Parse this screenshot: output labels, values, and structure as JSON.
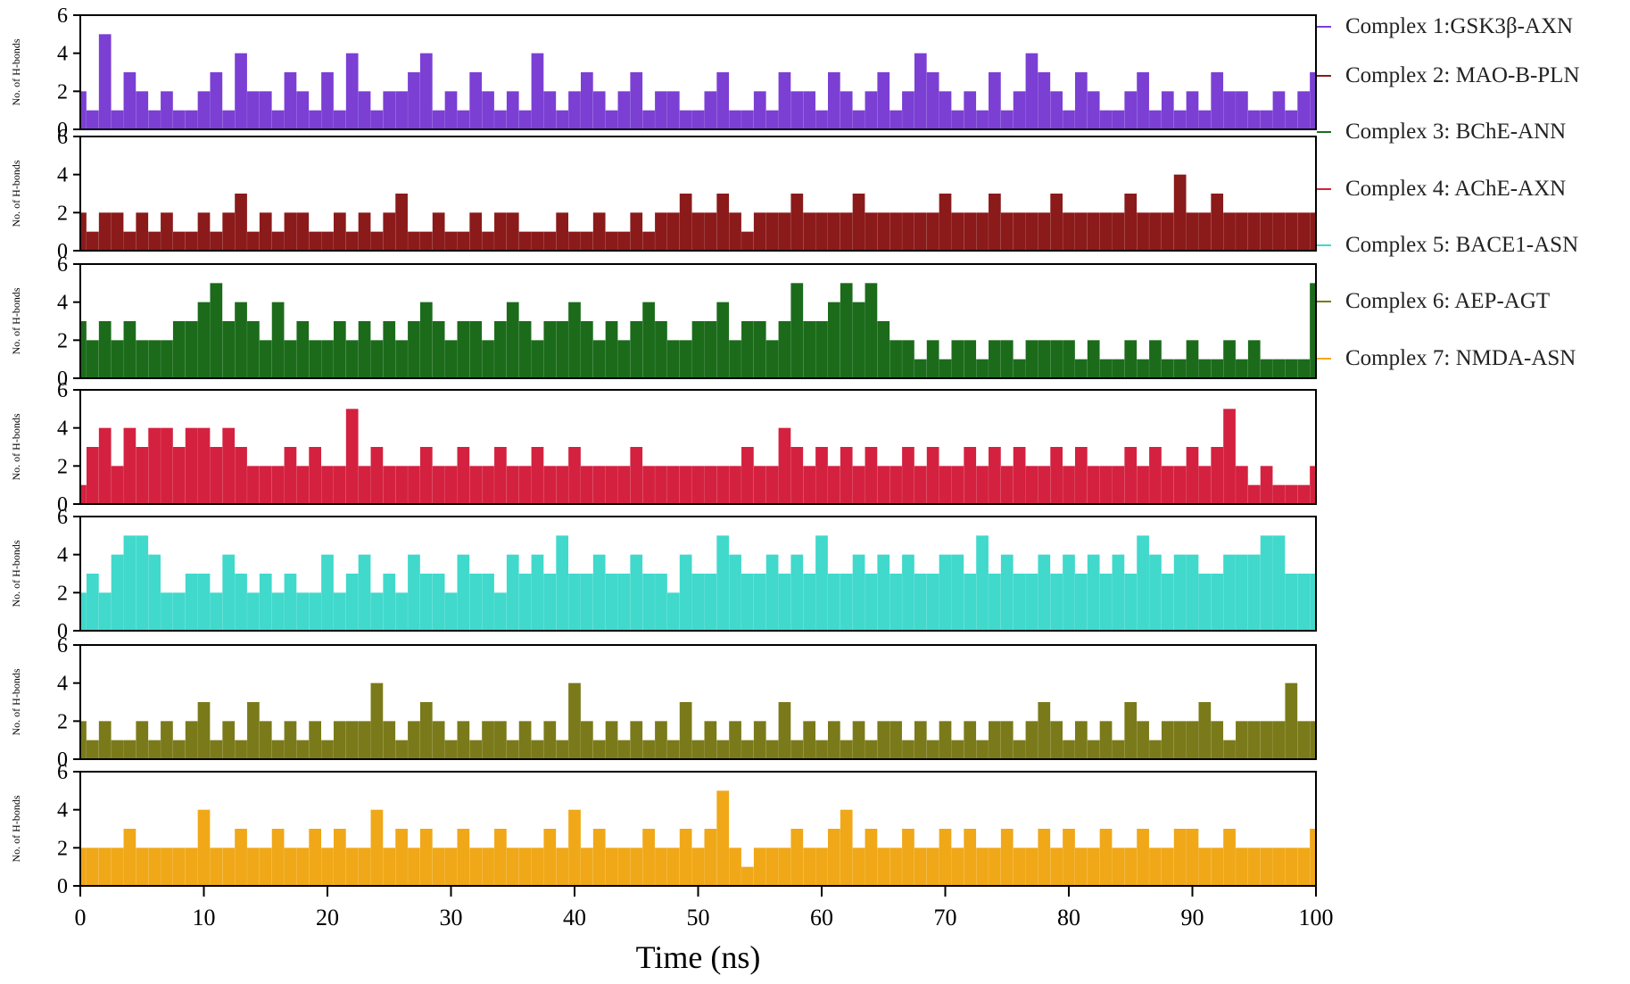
{
  "chart_data": {
    "type": "bar",
    "xlabel": "Time (ns)",
    "xlim": [
      0,
      100
    ],
    "x_ticks": [
      "0",
      "10",
      "20",
      "30",
      "40",
      "50",
      "60",
      "70",
      "80",
      "90",
      "100"
    ],
    "ylim": [
      0,
      6
    ],
    "y_ticks": [
      "0",
      "2",
      "4",
      "6"
    ],
    "panels": [
      {
        "legend": "Complex 1:GSK3β-AXN",
        "ylabel": "No. of H-bonds",
        "color": "#7b3fd4",
        "sample_interval_ns": 1,
        "values": [
          2,
          1,
          5,
          1,
          3,
          2,
          1,
          2,
          1,
          1,
          2,
          3,
          1,
          4,
          2,
          2,
          1,
          3,
          2,
          1,
          3,
          1,
          4,
          2,
          1,
          2,
          2,
          3,
          4,
          1,
          2,
          1,
          3,
          2,
          1,
          2,
          1,
          4,
          2,
          1,
          2,
          3,
          2,
          1,
          2,
          3,
          1,
          2,
          2,
          1,
          1,
          2,
          3,
          1,
          1,
          2,
          1,
          3,
          2,
          2,
          1,
          3,
          2,
          1,
          2,
          3,
          1,
          2,
          4,
          3,
          2,
          1,
          2,
          1,
          3,
          1,
          2,
          4,
          3,
          2,
          1,
          3,
          2,
          1,
          1,
          2,
          3,
          1,
          2,
          1,
          2,
          1,
          3,
          2,
          2,
          1,
          1,
          2,
          1,
          2,
          3
        ]
      },
      {
        "legend": "Complex 2: MAO-B-PLN",
        "ylabel": "No. of H-bonds",
        "color": "#8b1a1a",
        "sample_interval_ns": 1,
        "values": [
          2,
          1,
          2,
          2,
          1,
          2,
          1,
          2,
          1,
          1,
          2,
          1,
          2,
          3,
          1,
          2,
          1,
          2,
          2,
          1,
          1,
          2,
          1,
          2,
          1,
          2,
          3,
          1,
          1,
          2,
          1,
          1,
          2,
          1,
          2,
          2,
          1,
          1,
          1,
          2,
          1,
          1,
          2,
          1,
          1,
          2,
          1,
          2,
          2,
          3,
          2,
          2,
          3,
          2,
          1,
          2,
          2,
          2,
          3,
          2,
          2,
          2,
          2,
          3,
          2,
          2,
          2,
          2,
          2,
          2,
          3,
          2,
          2,
          2,
          3,
          2,
          2,
          2,
          2,
          3,
          2,
          2,
          2,
          2,
          2,
          3,
          2,
          2,
          2,
          4,
          2,
          2,
          3,
          2,
          2,
          2,
          2,
          2,
          2,
          2,
          2
        ]
      },
      {
        "legend": "Complex 3: BChE-ANN",
        "ylabel": "No. of H-bonds",
        "color": "#1b6b1b",
        "sample_interval_ns": 1,
        "values": [
          3,
          2,
          3,
          2,
          3,
          2,
          2,
          2,
          3,
          3,
          4,
          5,
          3,
          4,
          3,
          2,
          4,
          2,
          3,
          2,
          2,
          3,
          2,
          3,
          2,
          3,
          2,
          3,
          4,
          3,
          2,
          3,
          3,
          2,
          3,
          4,
          3,
          2,
          3,
          3,
          4,
          3,
          2,
          3,
          2,
          3,
          4,
          3,
          2,
          2,
          3,
          3,
          4,
          2,
          3,
          3,
          2,
          3,
          5,
          3,
          3,
          4,
          5,
          4,
          5,
          3,
          2,
          2,
          1,
          2,
          1,
          2,
          2,
          1,
          2,
          2,
          1,
          2,
          2,
          2,
          2,
          1,
          2,
          1,
          1,
          2,
          1,
          2,
          1,
          1,
          2,
          1,
          1,
          2,
          1,
          2,
          1,
          1,
          1,
          1,
          5
        ]
      },
      {
        "legend": "Complex 4: AChE-AXN",
        "ylabel": "No. of H-bonds",
        "color": "#d4213f",
        "sample_interval_ns": 1,
        "values": [
          1,
          3,
          4,
          2,
          4,
          3,
          4,
          4,
          3,
          4,
          4,
          3,
          4,
          3,
          2,
          2,
          2,
          3,
          2,
          3,
          2,
          2,
          5,
          2,
          3,
          2,
          2,
          2,
          3,
          2,
          2,
          3,
          2,
          2,
          3,
          2,
          2,
          3,
          2,
          2,
          3,
          2,
          2,
          2,
          2,
          3,
          2,
          2,
          2,
          2,
          2,
          2,
          2,
          2,
          3,
          2,
          2,
          4,
          3,
          2,
          3,
          2,
          3,
          2,
          3,
          2,
          2,
          3,
          2,
          3,
          2,
          2,
          3,
          2,
          3,
          2,
          3,
          2,
          2,
          3,
          2,
          3,
          2,
          2,
          2,
          3,
          2,
          3,
          2,
          2,
          3,
          2,
          3,
          5,
          2,
          1,
          2,
          1,
          1,
          1,
          2
        ]
      },
      {
        "legend": "Complex 5: BACE1-ASN",
        "ylabel": "No. of H-bonds",
        "color": "#40d9cc",
        "sample_interval_ns": 1,
        "values": [
          2,
          3,
          2,
          4,
          5,
          5,
          4,
          2,
          2,
          3,
          3,
          2,
          4,
          3,
          2,
          3,
          2,
          3,
          2,
          2,
          4,
          2,
          3,
          4,
          2,
          3,
          2,
          4,
          3,
          3,
          2,
          4,
          3,
          3,
          2,
          4,
          3,
          4,
          3,
          5,
          3,
          3,
          4,
          3,
          3,
          4,
          3,
          3,
          2,
          4,
          3,
          3,
          5,
          4,
          3,
          3,
          4,
          3,
          4,
          3,
          5,
          3,
          3,
          4,
          3,
          4,
          3,
          4,
          3,
          3,
          4,
          4,
          3,
          5,
          3,
          4,
          3,
          3,
          4,
          3,
          4,
          3,
          4,
          3,
          4,
          3,
          5,
          4,
          3,
          4,
          4,
          3,
          3,
          4,
          4,
          4,
          5,
          5,
          3,
          3,
          3
        ]
      },
      {
        "legend": "Complex 6: AEP-AGT",
        "ylabel": "No. of H-bonds",
        "color": "#7a7a1a",
        "sample_interval_ns": 1,
        "values": [
          2,
          1,
          2,
          1,
          1,
          2,
          1,
          2,
          1,
          2,
          3,
          1,
          2,
          1,
          3,
          2,
          1,
          2,
          1,
          2,
          1,
          2,
          2,
          2,
          4,
          2,
          1,
          2,
          3,
          2,
          1,
          2,
          1,
          2,
          2,
          1,
          2,
          1,
          2,
          1,
          4,
          2,
          1,
          2,
          1,
          2,
          1,
          2,
          1,
          3,
          1,
          2,
          1,
          2,
          1,
          2,
          1,
          3,
          1,
          2,
          1,
          2,
          1,
          2,
          1,
          2,
          2,
          1,
          2,
          1,
          2,
          1,
          2,
          1,
          2,
          2,
          1,
          2,
          3,
          2,
          1,
          2,
          1,
          2,
          1,
          3,
          2,
          1,
          2,
          2,
          2,
          3,
          2,
          1,
          2,
          2,
          2,
          2,
          4,
          2,
          2
        ]
      },
      {
        "legend": "Complex 7: NMDA-ASN",
        "ylabel": "No. of H-bonds",
        "color": "#f0a818",
        "sample_interval_ns": 1,
        "values": [
          2,
          2,
          2,
          2,
          3,
          2,
          2,
          2,
          2,
          2,
          4,
          2,
          2,
          3,
          2,
          2,
          3,
          2,
          2,
          3,
          2,
          3,
          2,
          2,
          4,
          2,
          3,
          2,
          3,
          2,
          2,
          3,
          2,
          2,
          3,
          2,
          2,
          2,
          3,
          2,
          4,
          2,
          3,
          2,
          2,
          2,
          3,
          2,
          2,
          3,
          2,
          3,
          5,
          2,
          1,
          2,
          2,
          2,
          3,
          2,
          2,
          3,
          4,
          2,
          3,
          2,
          2,
          3,
          2,
          2,
          3,
          2,
          3,
          2,
          2,
          3,
          2,
          2,
          3,
          2,
          3,
          2,
          2,
          3,
          2,
          2,
          3,
          2,
          2,
          3,
          3,
          2,
          2,
          3,
          2,
          2,
          2,
          2,
          2,
          2,
          3
        ]
      }
    ]
  }
}
